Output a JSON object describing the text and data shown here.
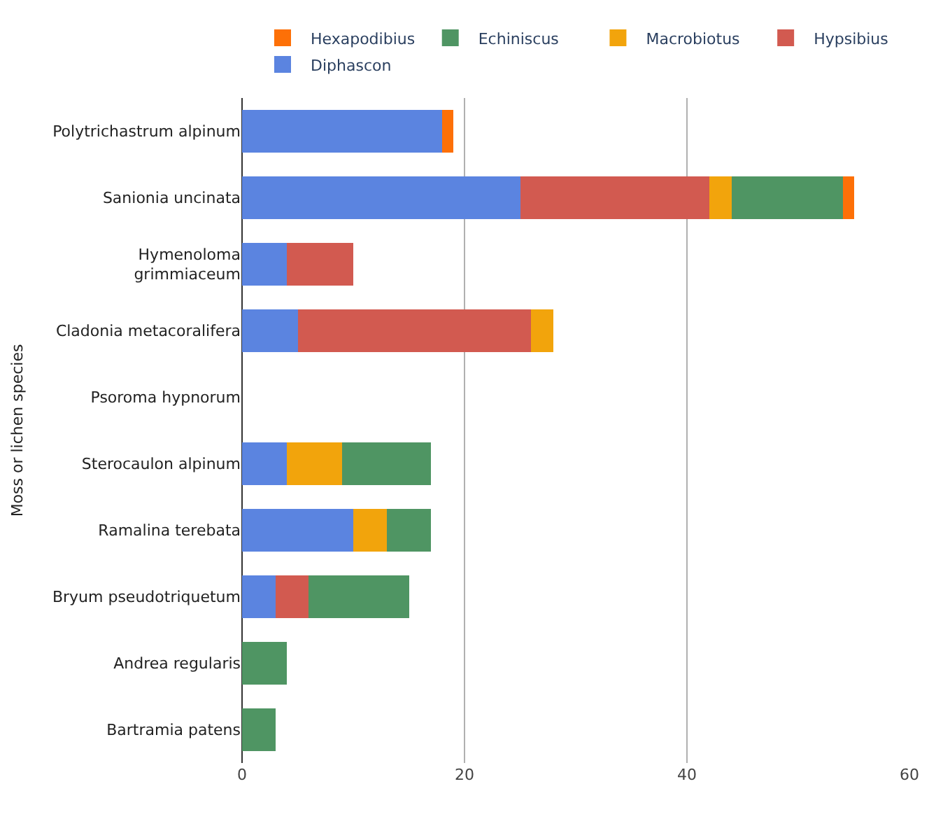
{
  "chart_data": {
    "type": "bar",
    "orientation": "horizontal",
    "stacked": true,
    "ylabel": "Moss or lichen species",
    "categories": [
      "Polytrichastrum alpinum",
      "Sanionia uncinata",
      "Hymenoloma\ngrimmiaceum",
      "Cladonia metacoralifera",
      "Psoroma hypnorum",
      "Sterocaulon alpinum",
      "Ramalina terebata",
      "Bryum pseudotriquetum",
      "Andrea regularis",
      "Bartramia patens"
    ],
    "series": [
      {
        "name": "Diphascon",
        "color": "#5b84e0",
        "values": [
          18,
          25,
          4,
          5,
          null,
          4,
          10,
          3,
          null,
          null
        ]
      },
      {
        "name": "Hypsibius",
        "color": "#d25a50",
        "values": [
          null,
          17,
          6,
          21,
          null,
          null,
          null,
          3,
          null,
          null
        ]
      },
      {
        "name": "Macrobiotus",
        "color": "#f2a40c",
        "values": [
          null,
          2,
          null,
          2,
          null,
          5,
          3,
          null,
          null,
          null
        ]
      },
      {
        "name": "Echiniscus",
        "color": "#4f9563",
        "values": [
          null,
          10,
          null,
          null,
          null,
          8,
          4,
          9,
          4,
          3
        ]
      },
      {
        "name": "Hexapodibius",
        "color": "#fd7007",
        "values": [
          1,
          1,
          null,
          null,
          null,
          null,
          null,
          null,
          null,
          null
        ]
      }
    ],
    "xlim": [
      0,
      60
    ],
    "xticks": [
      0,
      20,
      40,
      60
    ],
    "grid": "x",
    "legend": "top"
  }
}
